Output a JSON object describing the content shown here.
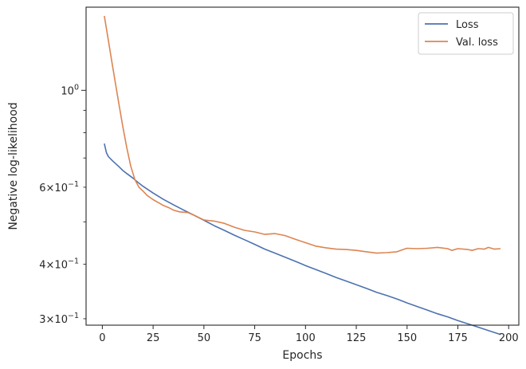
{
  "chart_data": {
    "type": "line",
    "xlabel": "Epochs",
    "ylabel": "Negative log-likelihood",
    "xlim": [
      -8,
      205
    ],
    "ylim": [
      0.29,
      1.55
    ],
    "yscale": "log",
    "grid": false,
    "legend_position": "top-right",
    "x_ticks": [
      0,
      25,
      50,
      75,
      100,
      125,
      150,
      175,
      200
    ],
    "x_tick_labels": [
      "0",
      "25",
      "50",
      "75",
      "100",
      "125",
      "150",
      "175",
      "200"
    ],
    "y_major_ticks": [
      1.0
    ],
    "y_major_tick_labels": [
      {
        "mant": "10",
        "exp": "0"
      }
    ],
    "y_minor_ticks": [
      0.3,
      0.4,
      0.5,
      0.6,
      0.7,
      0.8,
      0.9
    ],
    "y_minor_tick_labels": [
      {
        "value": 0.3,
        "mant": "3×10",
        "exp": "−1"
      },
      {
        "value": 0.4,
        "mant": "4×10",
        "exp": "−1"
      },
      {
        "value": 0.6,
        "mant": "6×10",
        "exp": "−1"
      }
    ],
    "series": [
      {
        "name": "Loss",
        "color": "#4c72b0",
        "x": [
          1,
          2,
          3,
          5,
          8,
          10,
          12,
          15,
          18,
          20,
          25,
          30,
          35,
          40,
          45,
          50,
          55,
          60,
          65,
          70,
          75,
          80,
          85,
          90,
          95,
          100,
          105,
          110,
          115,
          120,
          125,
          130,
          135,
          140,
          145,
          150,
          155,
          160,
          165,
          170,
          175,
          180,
          185,
          190,
          195,
          196
        ],
        "y": [
          0.755,
          0.72,
          0.705,
          0.69,
          0.67,
          0.656,
          0.645,
          0.63,
          0.613,
          0.603,
          0.582,
          0.563,
          0.547,
          0.532,
          0.518,
          0.504,
          0.49,
          0.478,
          0.466,
          0.455,
          0.444,
          0.433,
          0.424,
          0.415,
          0.406,
          0.397,
          0.389,
          0.381,
          0.373,
          0.366,
          0.359,
          0.352,
          0.345,
          0.339,
          0.333,
          0.326,
          0.32,
          0.314,
          0.308,
          0.303,
          0.297,
          0.292,
          0.287,
          0.282,
          0.277,
          0.276
        ]
      },
      {
        "name": "Val. loss",
        "color": "#dd8452",
        "x": [
          1,
          3,
          5,
          8,
          10,
          12,
          14,
          16,
          18,
          20,
          22,
          25,
          28,
          30,
          33,
          35,
          38,
          42,
          45,
          48,
          50,
          55,
          60,
          65,
          70,
          75,
          80,
          85,
          90,
          95,
          100,
          105,
          110,
          115,
          120,
          125,
          130,
          135,
          140,
          145,
          148,
          150,
          155,
          160,
          165,
          170,
          172,
          175,
          180,
          182,
          185,
          188,
          190,
          193,
          196
        ],
        "y": [
          1.48,
          1.3,
          1.14,
          0.94,
          0.83,
          0.74,
          0.67,
          0.625,
          0.6,
          0.588,
          0.575,
          0.562,
          0.552,
          0.545,
          0.538,
          0.532,
          0.527,
          0.525,
          0.518,
          0.51,
          0.505,
          0.502,
          0.496,
          0.486,
          0.478,
          0.474,
          0.468,
          0.47,
          0.465,
          0.456,
          0.448,
          0.44,
          0.436,
          0.433,
          0.432,
          0.43,
          0.427,
          0.424,
          0.425,
          0.427,
          0.432,
          0.435,
          0.434,
          0.435,
          0.437,
          0.434,
          0.43,
          0.434,
          0.432,
          0.43,
          0.434,
          0.433,
          0.437,
          0.433,
          0.434
        ]
      }
    ]
  }
}
